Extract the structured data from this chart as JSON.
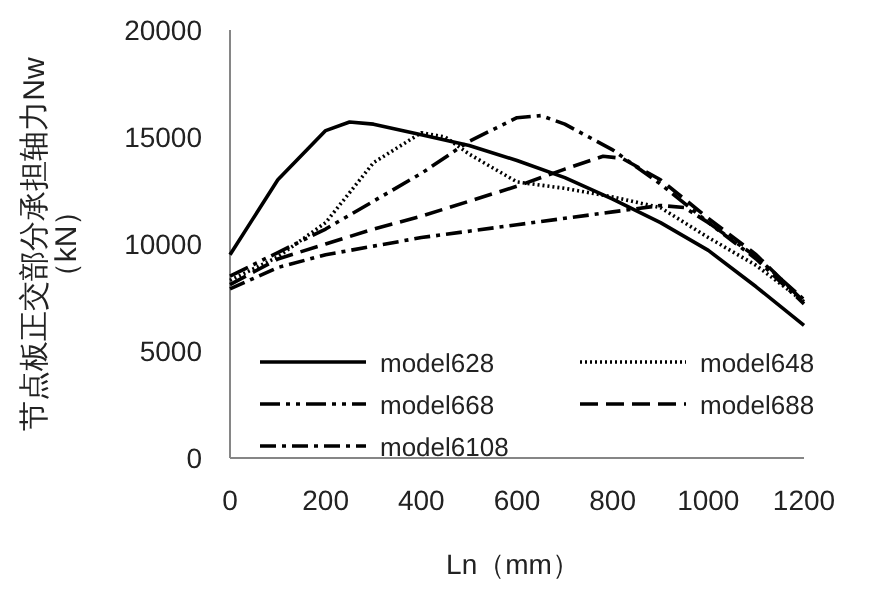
{
  "chart_data": {
    "type": "line",
    "xlabel": "Ln（mm）",
    "ylabel": "节点板正交部分承担轴力Nw\n（kN）",
    "xlim": [
      0,
      1200
    ],
    "xticks": [
      0,
      200,
      400,
      600,
      800,
      1000,
      1200
    ],
    "ylim": [
      0,
      20000
    ],
    "yticks": [
      0,
      5000,
      10000,
      15000,
      20000
    ],
    "grid": false,
    "legend": "bottom",
    "marker": "none",
    "series": [
      {
        "name": "model628",
        "color": "#000000",
        "line_style": "solid",
        "x": [
          0,
          100,
          200,
          250,
          300,
          400,
          500,
          600,
          700,
          800,
          900,
          1000,
          1100,
          1200
        ],
        "values": [
          9500,
          13000,
          15300,
          15700,
          15600,
          15100,
          14600,
          13900,
          13100,
          12100,
          11000,
          9700,
          8000,
          6200
        ]
      },
      {
        "name": "model648",
        "color": "#000000",
        "line_style": "dotted",
        "x": [
          0,
          100,
          200,
          300,
          400,
          450,
          500,
          600,
          700,
          800,
          900,
          1000,
          1100,
          1200
        ],
        "values": [
          8300,
          9400,
          11000,
          13800,
          15200,
          15000,
          14200,
          12900,
          12600,
          12200,
          11700,
          10300,
          9000,
          7300
        ]
      },
      {
        "name": "model668",
        "color": "#000000",
        "line_style": "dashdotdot",
        "x": [
          0,
          100,
          200,
          300,
          400,
          500,
          600,
          650,
          700,
          800,
          900,
          1000,
          1100,
          1200
        ],
        "values": [
          8500,
          9600,
          10700,
          12000,
          13300,
          14800,
          15900,
          16000,
          15600,
          14400,
          12800,
          11000,
          9400,
          7400
        ]
      },
      {
        "name": "model688",
        "color": "#000000",
        "line_style": "dashed",
        "x": [
          0,
          100,
          200,
          300,
          400,
          500,
          600,
          700,
          780,
          820,
          900,
          1000,
          1100,
          1200
        ],
        "values": [
          8100,
          9300,
          10000,
          10700,
          11300,
          12000,
          12700,
          13500,
          14100,
          14000,
          13000,
          11200,
          9500,
          7300
        ]
      },
      {
        "name": "model6108",
        "color": "#000000",
        "line_style": "dashdot",
        "x": [
          0,
          100,
          200,
          300,
          400,
          500,
          600,
          700,
          800,
          900,
          950,
          1000,
          1100,
          1200
        ],
        "values": [
          7900,
          8900,
          9500,
          9900,
          10300,
          10600,
          10900,
          11200,
          11500,
          11800,
          11700,
          11000,
          9300,
          7200
        ]
      }
    ]
  }
}
